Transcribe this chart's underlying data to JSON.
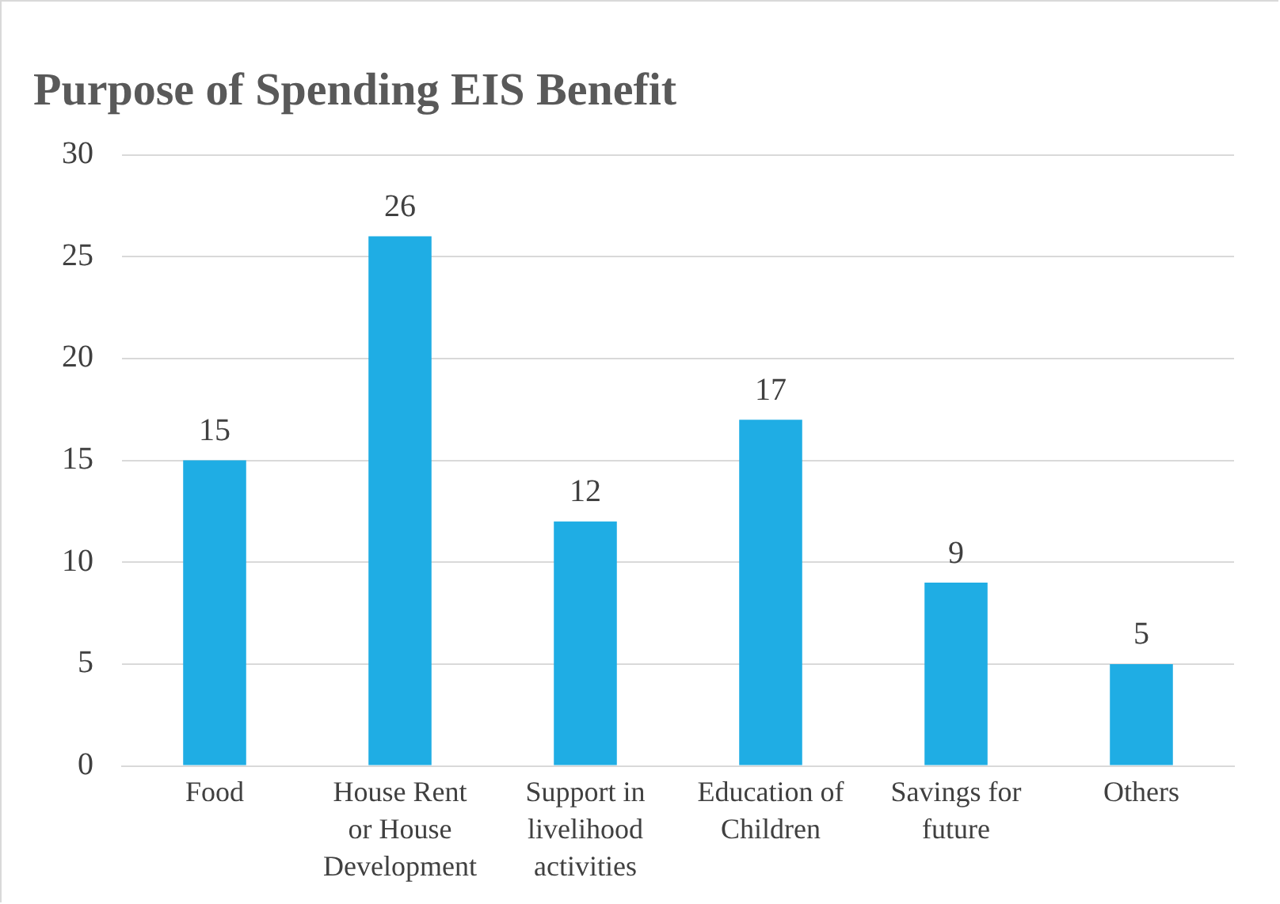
{
  "chart_data": {
    "type": "bar",
    "title": "Purpose of Spending EIS Benefit",
    "categories": [
      "Food",
      "House Rent or House Development",
      "Support in livelihood activities",
      "Education of Children",
      "Savings for future",
      "Others"
    ],
    "values": [
      15,
      26,
      12,
      17,
      9,
      5
    ],
    "color": "#1fade4",
    "ylim": [
      0,
      30
    ],
    "yticks": [
      0,
      5,
      10,
      15,
      20,
      25,
      30
    ],
    "grid": "y",
    "data_labels": true,
    "legend": false
  }
}
